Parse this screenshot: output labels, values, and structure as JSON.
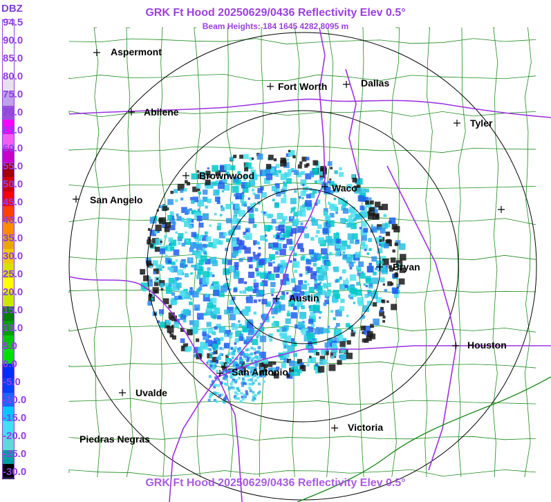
{
  "header": {
    "title": "GRK Ft Hood 20250629/0436 Reflectivity Elev 0.5°",
    "subtitle": "Beam Heights: 184 1645 4282 8095 m",
    "footer_title": "GRK Ft Hood 20250629/0436 Reflectivity Elev 0.5°"
  },
  "legend": {
    "title": "DBZ",
    "labels": [
      "94.5",
      "90.0",
      "85.0",
      "80.0",
      "75.0",
      "70.0",
      "65.0",
      "60.0",
      "55.0",
      "50.0",
      "45.0",
      "40.0",
      "35.0",
      "30.0",
      "25.0",
      "20.0",
      "15.0",
      "10.0",
      "5.0",
      "0.0",
      "-5.0",
      "-10.0",
      "-15.0",
      "-20.0",
      "-25.0",
      "-30.0"
    ],
    "colors": [
      "#ffffff",
      "#ffffff",
      "#ffffff",
      "#ffffff",
      "#e8e0f0",
      "#c0a0e8",
      "#9850d8",
      "#ff00ff",
      "#f060f0",
      "#c800c8",
      "#a00000",
      "#d00000",
      "#ff0000",
      "#ff4000",
      "#ff8c00",
      "#e8a800",
      "#f0c800",
      "#d8e000",
      "#ffff00",
      "#c8e800",
      "#008000",
      "#00a000",
      "#00c800",
      "#00e000",
      "#002cff",
      "#0040ff",
      "#2064ff",
      "#00c8ff",
      "#40e0f0",
      "#60d8d8",
      "#00a0a0",
      "#000000"
    ]
  },
  "cities": [
    {
      "name": "Aspermont"
    },
    {
      "name": "Fort Worth"
    },
    {
      "name": "Dallas"
    },
    {
      "name": "Abilene"
    },
    {
      "name": "Tyler"
    },
    {
      "name": "Brownwood"
    },
    {
      "name": "Waco"
    },
    {
      "name": "San Angelo"
    },
    {
      "name": "Bryan"
    },
    {
      "name": "Austin"
    },
    {
      "name": "Houston"
    },
    {
      "name": "San Antonio"
    },
    {
      "name": "Uvalde"
    },
    {
      "name": "Victoria"
    },
    {
      "name": "Piedras Negras"
    }
  ],
  "colors": {
    "title": "#9a40e0",
    "range_rings": "#000000",
    "county_lines": "#1a8a1a",
    "highways": "#9b30e0"
  }
}
